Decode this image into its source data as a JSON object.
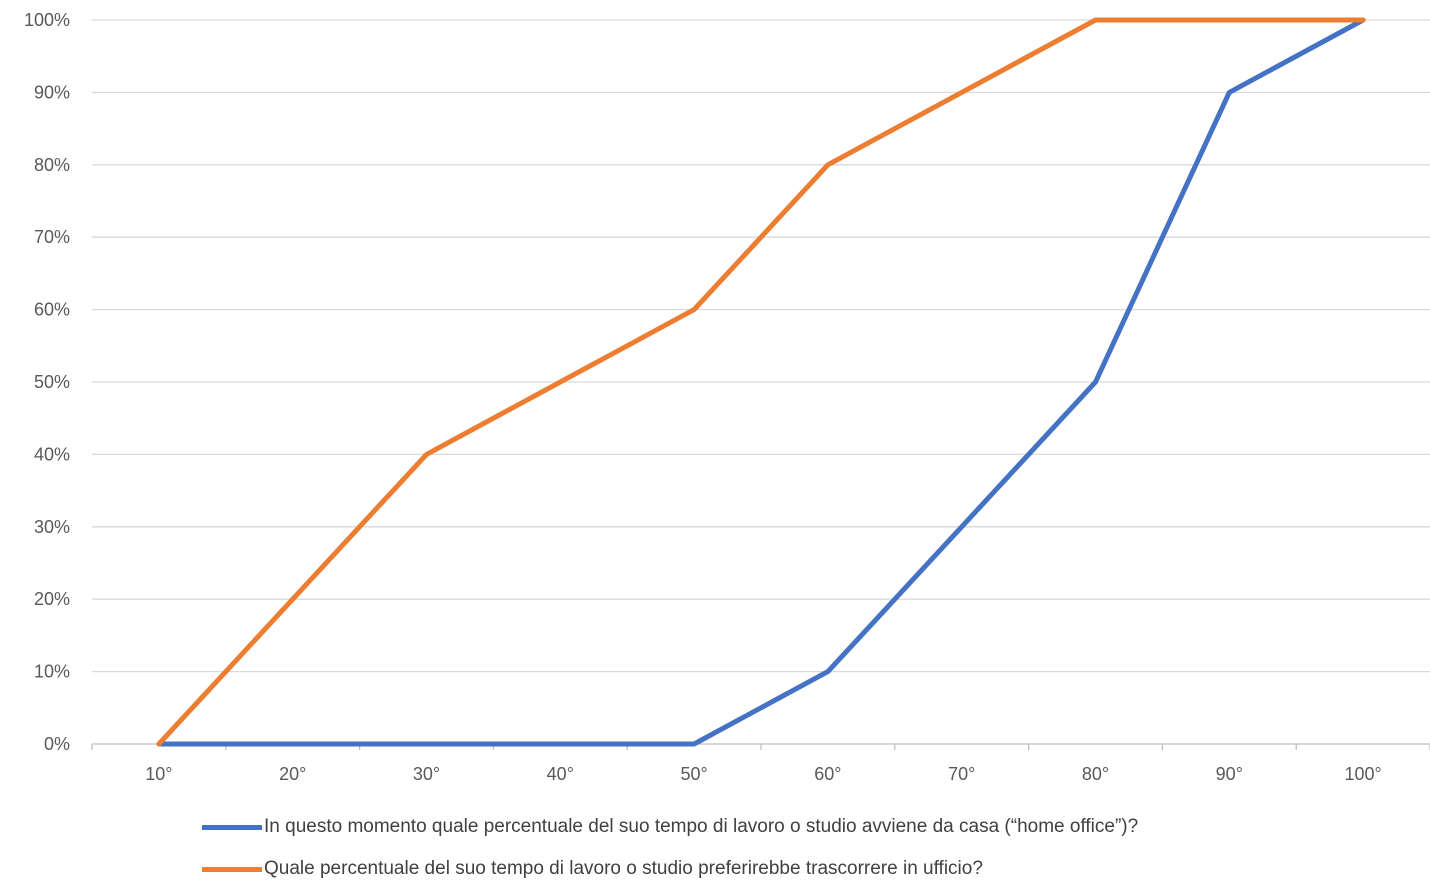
{
  "chart_data": {
    "type": "line",
    "title": "",
    "xlabel": "",
    "ylabel": "",
    "categories": [
      "10°",
      "20°",
      "30°",
      "40°",
      "50°",
      "60°",
      "70°",
      "80°",
      "90°",
      "100°"
    ],
    "y_ticks": [
      "0%",
      "10%",
      "20%",
      "30%",
      "40%",
      "50%",
      "60%",
      "70%",
      "80%",
      "90%",
      "100%"
    ],
    "ylim": [
      0,
      100
    ],
    "grid": true,
    "legend_position": "bottom",
    "series": [
      {
        "name": "In questo momento quale percentuale del suo tempo di lavoro o studio avviene da casa (“home office”)?",
        "color": "#4472C4",
        "values": [
          0,
          0,
          0,
          0,
          0,
          10,
          30,
          50,
          90,
          100
        ]
      },
      {
        "name": "Quale percentuale del suo tempo di lavoro o studio preferirebbe trascorrere in ufficio?",
        "color": "#ED7D31",
        "values": [
          0,
          20,
          40,
          50,
          60,
          80,
          90,
          100,
          100,
          100
        ]
      }
    ]
  }
}
